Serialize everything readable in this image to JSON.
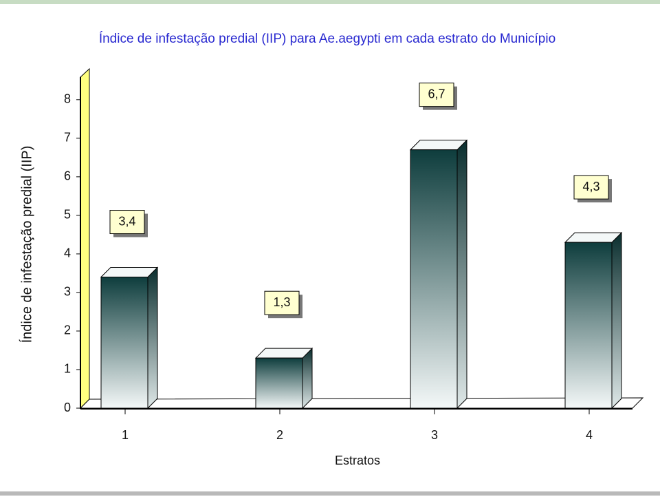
{
  "chart_data": {
    "type": "bar",
    "title": "Índice de infestação predial (IIP) para Ae.aegypti em cada estrato do Município",
    "x_label": "Estratos",
    "y_label": "Índice de infestação predial (IIP)",
    "categories": [
      "1",
      "2",
      "3",
      "4"
    ],
    "values": [
      3.4,
      1.3,
      6.7,
      4.3
    ],
    "value_labels": [
      "3,4",
      "1,3",
      "6,7",
      "4,3"
    ],
    "color": "#0e3d3d",
    "ylim": [
      0,
      8.8
    ],
    "yticks": [
      0,
      1,
      2,
      3,
      4,
      5,
      6,
      7,
      8
    ]
  }
}
